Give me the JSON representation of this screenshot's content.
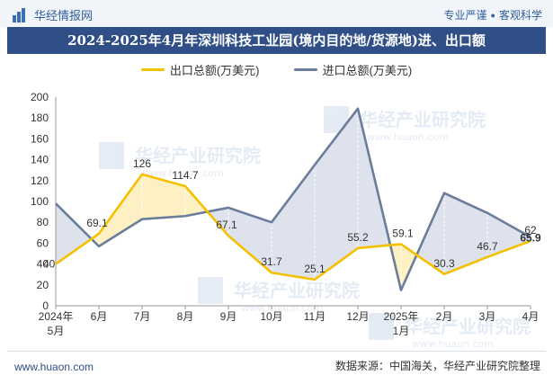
{
  "header": {
    "brand": "华经情报网",
    "tagline_left": "专业严谨",
    "tagline_right": "客观科学"
  },
  "title": "2024-2025年4月年深圳科技工业园(境内目的地/货源地)进、出口额",
  "footer": {
    "url": "www.huaon.com",
    "source": "数据来源：中国海关，华经产业研究院整理"
  },
  "watermark": "华经产业研究院",
  "watermark_url": "www.huaon.com",
  "colors": {
    "export": "#f5c000",
    "import": "#6b7d9a",
    "export_fill": "#fdf1c4",
    "import_fill": "#dde2ec",
    "title_bg": "#2f4f86"
  },
  "chart_data": {
    "type": "line",
    "categories": [
      "2024年5月",
      "6月",
      "7月",
      "8月",
      "9月",
      "10月",
      "11月",
      "12月",
      "2025年1月",
      "2月",
      "3月",
      "4月"
    ],
    "series": [
      {
        "name": "出口总额(万美元)",
        "values": [
          40,
          69.1,
          126,
          114.7,
          67.1,
          31.7,
          25.1,
          55.2,
          59.1,
          30.3,
          46.7,
          62
        ]
      },
      {
        "name": "进口总额(万美元)",
        "values": [
          98,
          57,
          83,
          86,
          94,
          80,
          135,
          189,
          15,
          108,
          89,
          65.9
        ]
      }
    ],
    "data_labels": [
      "40",
      "69.1",
      "126",
      "114.7",
      "67.1",
      "31.7",
      "25.1",
      "55.2",
      "59.1",
      "30.3",
      "46.7",
      "62"
    ],
    "import_last_label": "65.9",
    "ylim": [
      0,
      200
    ],
    "yticks": [
      0,
      20,
      40,
      60,
      80,
      100,
      120,
      140,
      160,
      180,
      200
    ],
    "grid": false,
    "legend_position": "top"
  }
}
